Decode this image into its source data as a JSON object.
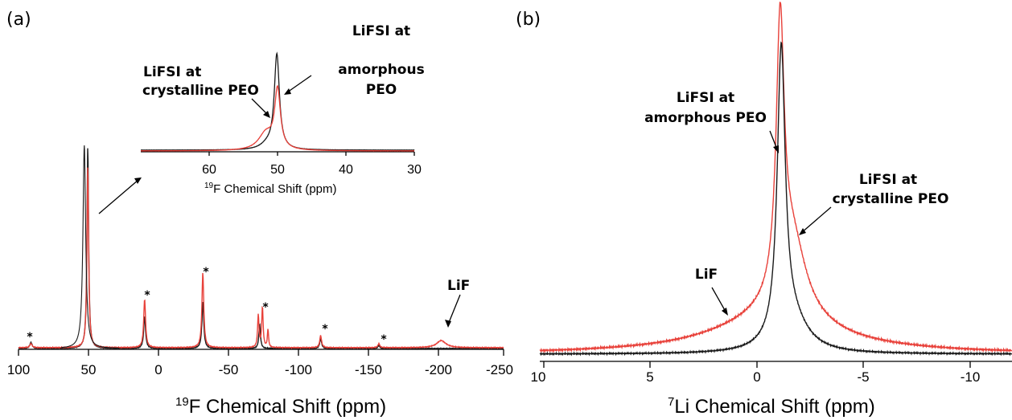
{
  "panels": {
    "a": {
      "label": "(a)",
      "xlabel_main": "F Chemical Shift (ppm)",
      "xlabel_sup": "19",
      "ticks": [
        "100",
        "50",
        "0",
        "-50",
        "-100",
        "-150",
        "-200",
        "-250"
      ],
      "inset": {
        "xlabel_main": "F Chemical Shift (ppm)",
        "xlabel_sup": "19",
        "ticks": [
          "60",
          "50",
          "40",
          "30"
        ]
      },
      "annotations": {
        "crystalline_l1": "LiFSI at",
        "crystalline_l2": "crystalline PEO",
        "amorphous_l1": "LiFSI at",
        "amorphous_l2": "amorphous",
        "amorphous_l3": "PEO",
        "lif": "LiF",
        "star": "*"
      }
    },
    "b": {
      "label": "(b)",
      "xlabel_main": "Li Chemical Shift (ppm)",
      "xlabel_sup": "7",
      "ticks": [
        "10",
        "5",
        "0",
        "-5",
        "-10"
      ],
      "annotations": {
        "amorphous_l1": "LiFSI at",
        "amorphous_l2": "amorphous PEO",
        "crystalline_l1": "LiFSI at",
        "crystalline_l2": "crystalline PEO",
        "lif": "LiF"
      }
    }
  },
  "chart_data": [
    {
      "type": "line",
      "panel": "a",
      "xlabel": "19F Chemical Shift (ppm)",
      "xlim": [
        100,
        -250
      ],
      "x_reversed": true,
      "colors": {
        "black": "#1a1a1a",
        "red": "#e8413a"
      },
      "series": [
        {
          "color": "black",
          "baseline": 0.0,
          "peaks": [
            [
              91,
              0.03,
              1
            ],
            [
              50,
              1.0,
              0.7
            ],
            [
              9,
              0.16,
              0.8
            ],
            [
              -33,
              0.23,
              0.8
            ],
            [
              -74,
              0.12,
              0.7
            ],
            [
              -118,
              0.05,
              0.8
            ],
            [
              -160,
              0.015,
              0.8
            ],
            [
              -205,
              0.0,
              4
            ]
          ]
        },
        {
          "color": "red",
          "baseline": 0.0,
          "peaks": [
            [
              91,
              0.02,
              1
            ],
            [
              50,
              0.9,
              0.7
            ],
            [
              9,
              0.24,
              0.8
            ],
            [
              -33,
              0.37,
              0.8
            ],
            [
              -73,
              0.16,
              0.6
            ],
            [
              -76,
              0.2,
              0.6
            ],
            [
              -80,
              0.09,
              0.5
            ],
            [
              -118,
              0.06,
              0.8
            ],
            [
              -160,
              0.02,
              0.8
            ],
            [
              -205,
              0.035,
              4
            ]
          ]
        }
      ],
      "star_positions": [
        90,
        8,
        -33,
        -77,
        -120,
        -161
      ]
    },
    {
      "type": "line",
      "panel": "a-inset",
      "xlabel": "19F Chemical Shift (ppm)",
      "xlim": [
        70,
        30
      ],
      "x_reversed": true,
      "series": [
        {
          "color": "black",
          "peaks": [
            [
              50.1,
              1.0,
              0.45
            ],
            [
              51.5,
              0.05,
              1.2
            ]
          ]
        },
        {
          "color": "red",
          "peaks": [
            [
              50.0,
              0.62,
              0.5
            ],
            [
              51.7,
              0.18,
              1.3
            ]
          ]
        }
      ]
    },
    {
      "type": "line",
      "panel": "b",
      "xlabel": "7Li Chemical Shift (ppm)",
      "xlim": [
        10,
        -12
      ],
      "x_reversed": true,
      "series": [
        {
          "color": "black",
          "peaks": [
            [
              -1.25,
              1.0,
              0.22
            ],
            [
              -1.7,
              0.12,
              0.9
            ]
          ]
        },
        {
          "color": "red",
          "peaks": [
            [
              -1.2,
              0.93,
              0.22
            ],
            [
              -1.75,
              0.28,
              0.8
            ],
            [
              -0.9,
              0.12,
              3.5
            ]
          ]
        }
      ]
    }
  ]
}
